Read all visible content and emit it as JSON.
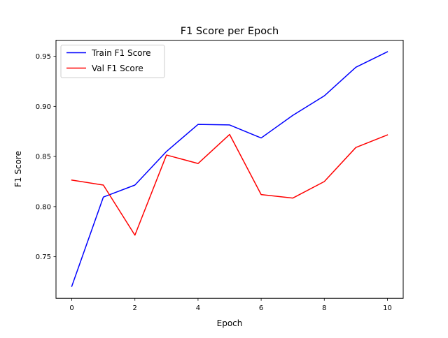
{
  "chart_data": {
    "type": "line",
    "title": "F1 Score per Epoch",
    "xlabel": "Epoch",
    "ylabel": "F1 Score",
    "x": [
      0,
      1,
      2,
      3,
      4,
      5,
      6,
      7,
      8,
      9,
      10
    ],
    "xlim": [
      -0.5,
      10.5
    ],
    "ylim": [
      0.7085,
      0.966
    ],
    "xticks": [
      0,
      2,
      4,
      6,
      8,
      10
    ],
    "xtick_labels": [
      "0",
      "2",
      "4",
      "6",
      "8",
      "10"
    ],
    "yticks": [
      0.75,
      0.8,
      0.85,
      0.9,
      0.95
    ],
    "ytick_labels": [
      "0.75",
      "0.80",
      "0.85",
      "0.90",
      "0.95"
    ],
    "grid": false,
    "legend_position": "top-left",
    "series": [
      {
        "name": "Train F1 Score",
        "color": "#0000ff",
        "values": [
          0.7205,
          0.8095,
          0.8215,
          0.855,
          0.882,
          0.8815,
          0.8685,
          0.891,
          0.9105,
          0.939,
          0.9545
        ]
      },
      {
        "name": "Val F1 Score",
        "color": "#ff0000",
        "values": [
          0.8265,
          0.8215,
          0.7715,
          0.8515,
          0.843,
          0.872,
          0.812,
          0.8085,
          0.825,
          0.859,
          0.8715
        ]
      }
    ]
  }
}
